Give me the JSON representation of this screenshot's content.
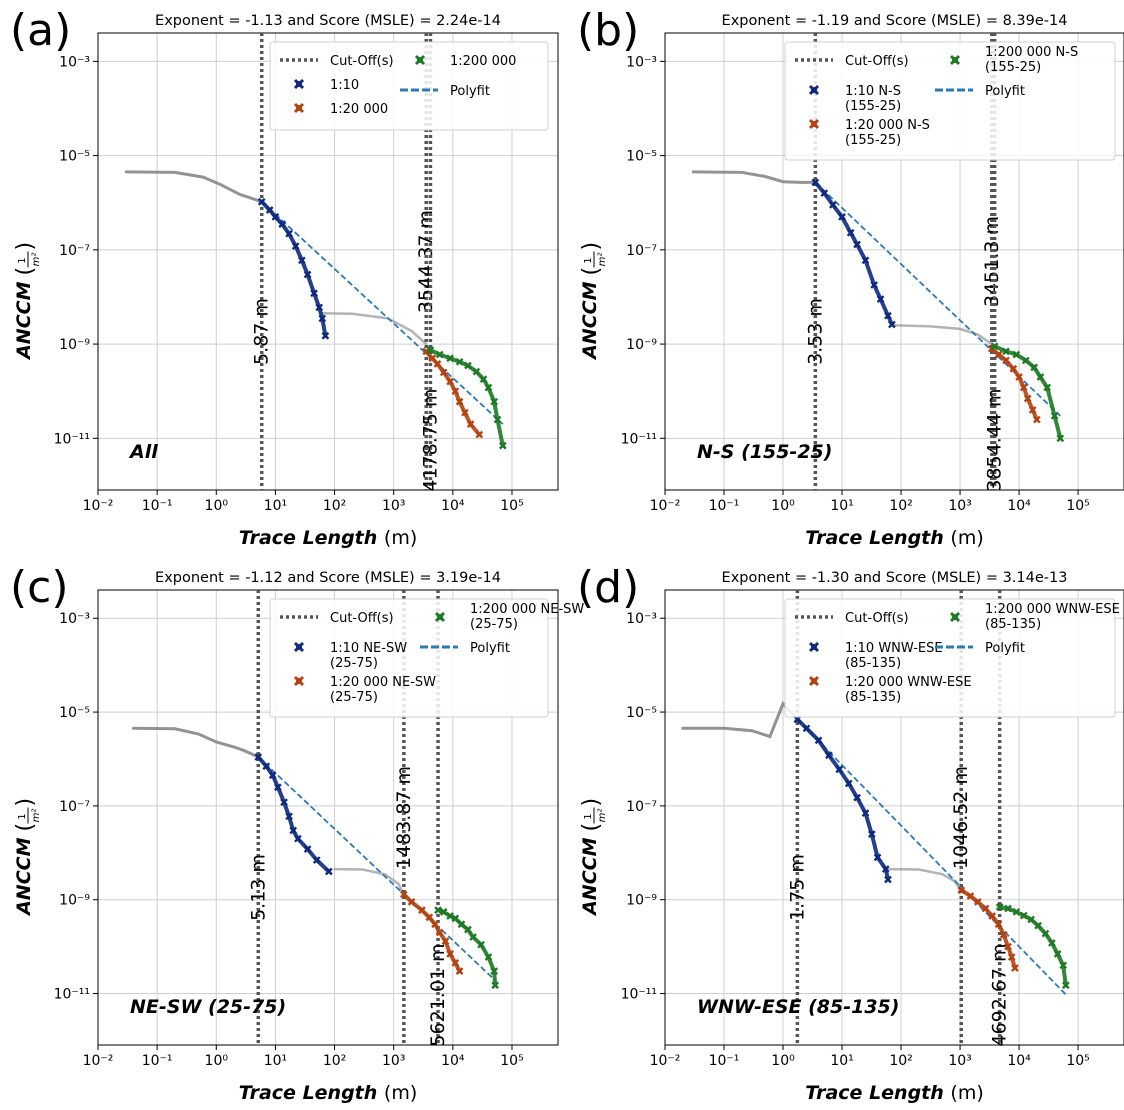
{
  "figure": {
    "shared": {
      "xlabel": "Trace Length",
      "xlabel_unit": "(m)",
      "ylabel": "ANCCM",
      "ylabel_unit_num": "1",
      "ylabel_unit_den": "m²",
      "xscale": "log",
      "yscale": "log",
      "grid": true,
      "xticks": [
        "10⁻²",
        "10⁻¹",
        "10⁰",
        "10¹",
        "10²",
        "10³",
        "10⁴",
        "10⁵"
      ],
      "yticks": [
        "10⁻¹¹",
        "10⁻⁹",
        "10⁻⁷",
        "10⁻⁵",
        "10⁻³"
      ]
    },
    "colors": {
      "blue": "#0d2a80",
      "orange": "#b5420f",
      "green": "#1d7a23",
      "polyfit": "#2a7ab8",
      "cutoff": "#555555",
      "grey": "#808080"
    }
  },
  "chart_data": [
    {
      "type": "scatter",
      "panel": "(a)",
      "title": "Exponent = -1.13 and Score (MSLE) = 2.24e-14",
      "set_label": "All",
      "xlim": [
        0.01,
        600000
      ],
      "ylim": [
        8e-13,
        0.004
      ],
      "legend": [
        "Cut-Off(s)",
        "1:10",
        "1:20 000",
        "1:200 000",
        "Polyfit"
      ],
      "cutoffs": [
        {
          "x": 5.87,
          "label": "5.87 m"
        },
        {
          "x": 3544.37,
          "label": "3544.37 m"
        },
        {
          "x": 4178.75,
          "label": "4178.75 m"
        }
      ],
      "grey_curve": [
        [
          0.03,
          4.5e-06
        ],
        [
          0.2,
          4.4e-06
        ],
        [
          0.6,
          3.5e-06
        ],
        [
          1.2,
          2.4e-06
        ],
        [
          2.5,
          1.5e-06
        ],
        [
          5.87,
          1.05e-06
        ]
      ],
      "grey_mid_curve": [
        [
          60,
          4.5e-09
        ],
        [
          200,
          4.4e-09
        ],
        [
          800,
          3.5e-09
        ],
        [
          2000,
          1.9e-09
        ],
        [
          3544,
          1e-09
        ]
      ],
      "series": [
        {
          "name": "1:10",
          "color": "blue",
          "marker": "x",
          "points": [
            [
              5.87,
              1.05e-06
            ],
            [
              8,
              7e-07
            ],
            [
              10,
              5e-07
            ],
            [
              13,
              3.5e-07
            ],
            [
              17,
              2.2e-07
            ],
            [
              22,
              1.2e-07
            ],
            [
              28,
              6e-08
            ],
            [
              35,
              3e-08
            ],
            [
              45,
              1.2e-08
            ],
            [
              55,
              6e-09
            ],
            [
              62,
              3.5e-09
            ],
            [
              70,
              1.5e-09
            ]
          ]
        },
        {
          "name": "1:20 000",
          "color": "orange",
          "marker": "x",
          "points": [
            [
              3544,
              7e-10
            ],
            [
              4500,
              5e-10
            ],
            [
              5500,
              3.8e-10
            ],
            [
              7000,
              2.5e-10
            ],
            [
              9000,
              1.6e-10
            ],
            [
              11000,
              1e-10
            ],
            [
              13000,
              6e-11
            ],
            [
              16000,
              3.5e-11
            ],
            [
              20000,
              2e-11
            ],
            [
              28000,
              1.2e-11
            ]
          ]
        },
        {
          "name": "1:200 000",
          "color": "green",
          "marker": "x",
          "points": [
            [
              4178,
              7.5e-10
            ],
            [
              6000,
              6e-10
            ],
            [
              9000,
              5e-10
            ],
            [
              13000,
              4.2e-10
            ],
            [
              18000,
              3.5e-10
            ],
            [
              25000,
              2.6e-10
            ],
            [
              33000,
              1.8e-10
            ],
            [
              40000,
              1.2e-10
            ],
            [
              50000,
              6e-11
            ],
            [
              57000,
              2.5e-11
            ],
            [
              70000,
              7e-12
            ]
          ]
        }
      ],
      "polyfit": [
        [
          5.87,
          1.05e-06
        ],
        [
          70000,
          2e-11
        ]
      ]
    },
    {
      "type": "scatter",
      "panel": "(b)",
      "title": "Exponent = -1.19 and Score (MSLE) = 8.39e-14",
      "set_label": "N-S (155-25)",
      "xlim": [
        0.01,
        600000
      ],
      "ylim": [
        8e-13,
        0.004
      ],
      "legend": [
        "Cut-Off(s)",
        "1:10 N-S (155-25)",
        "1:20 000 N-S (155-25)",
        "1:200 000 N-S (155-25)",
        "Polyfit"
      ],
      "cutoffs": [
        {
          "x": 3.53,
          "label": "3.53 m"
        },
        {
          "x": 3451.3,
          "label": "3451.3 m"
        },
        {
          "x": 3854.44,
          "label": "3854.44 m"
        }
      ],
      "grey_curve": [
        [
          0.03,
          4.5e-06
        ],
        [
          0.2,
          4.4e-06
        ],
        [
          0.5,
          3.6e-06
        ],
        [
          1.0,
          2.8e-06
        ],
        [
          2.0,
          2.7e-06
        ],
        [
          3.53,
          2.7e-06
        ]
      ],
      "grey_mid_curve": [
        [
          70,
          2.5e-09
        ],
        [
          300,
          2.4e-09
        ],
        [
          1000,
          2.1e-09
        ],
        [
          2000,
          1.6e-09
        ],
        [
          3451,
          1e-09
        ]
      ],
      "series": [
        {
          "name": "1:10 N-S (155-25)",
          "color": "blue",
          "marker": "x",
          "points": [
            [
              3.53,
              2.7e-06
            ],
            [
              5,
              1.6e-06
            ],
            [
              7,
              9e-07
            ],
            [
              10,
              5e-07
            ],
            [
              14,
              2.3e-07
            ],
            [
              18,
              1.3e-07
            ],
            [
              25,
              6e-08
            ],
            [
              35,
              1.8e-08
            ],
            [
              45,
              9e-09
            ],
            [
              60,
              4e-09
            ],
            [
              70,
              2.6e-09
            ]
          ]
        },
        {
          "name": "1:20 000 N-S (155-25)",
          "color": "orange",
          "marker": "x",
          "points": [
            [
              3451,
              8e-10
            ],
            [
              4500,
              6e-10
            ],
            [
              6000,
              4.5e-10
            ],
            [
              8000,
              3e-10
            ],
            [
              10000,
              2e-10
            ],
            [
              12000,
              1.2e-10
            ],
            [
              14000,
              7e-11
            ],
            [
              17000,
              4e-11
            ],
            [
              20000,
              2.5e-11
            ]
          ]
        },
        {
          "name": "1:200 000 N-S (155-25)",
          "color": "green",
          "marker": "x",
          "points": [
            [
              3854,
              9e-10
            ],
            [
              6000,
              7e-10
            ],
            [
              9000,
              6e-10
            ],
            [
              13000,
              4.5e-10
            ],
            [
              18000,
              3.2e-10
            ],
            [
              23000,
              2e-10
            ],
            [
              30000,
              1.2e-10
            ],
            [
              40000,
              3e-11
            ],
            [
              50000,
              1e-11
            ]
          ]
        }
      ],
      "polyfit": [
        [
          3.53,
          2.7e-06
        ],
        [
          50000,
          3e-11
        ]
      ]
    },
    {
      "type": "scatter",
      "panel": "(c)",
      "title": "Exponent = -1.12 and Score (MSLE) = 3.19e-14",
      "set_label": "NE-SW (25-75)",
      "xlim": [
        0.01,
        600000
      ],
      "ylim": [
        8e-13,
        0.004
      ],
      "legend": [
        "Cut-Off(s)",
        "1:10 NE-SW (25-75)",
        "1:20 000 NE-SW (25-75)",
        "1:200 000 NE-SW (25-75)",
        "Polyfit"
      ],
      "cutoffs": [
        {
          "x": 5.13,
          "label": "5.13 m"
        },
        {
          "x": 1483.87,
          "label": "1483.87 m"
        },
        {
          "x": 5621.01,
          "label": "5621.01 m"
        }
      ],
      "grey_curve": [
        [
          0.04,
          4.5e-06
        ],
        [
          0.2,
          4.4e-06
        ],
        [
          0.5,
          3.4e-06
        ],
        [
          1.0,
          2.3e-06
        ],
        [
          2.0,
          1.8e-06
        ],
        [
          3.0,
          1.5e-06
        ],
        [
          5.13,
          1.1e-06
        ]
      ],
      "grey_mid_curve": [
        [
          100,
          4.5e-09
        ],
        [
          300,
          4.4e-09
        ],
        [
          700,
          3.5e-09
        ],
        [
          1200,
          2.2e-09
        ],
        [
          1483,
          1.3e-09
        ]
      ],
      "series": [
        {
          "name": "1:10 NE-SW (25-75)",
          "color": "blue",
          "marker": "x",
          "points": [
            [
              5.13,
              1.1e-06
            ],
            [
              7,
              7e-07
            ],
            [
              9,
              4.5e-07
            ],
            [
              11,
              2.5e-07
            ],
            [
              14,
              1.2e-07
            ],
            [
              17,
              6e-08
            ],
            [
              20,
              3e-08
            ],
            [
              24,
              2e-08
            ],
            [
              35,
              1.2e-08
            ],
            [
              50,
              7e-09
            ],
            [
              80,
              4e-09
            ]
          ]
        },
        {
          "name": "1:20 000 NE-SW (25-75)",
          "color": "orange",
          "marker": "x",
          "points": [
            [
              1483,
              1.3e-09
            ],
            [
              2000,
              9e-10
            ],
            [
              3000,
              6e-10
            ],
            [
              4000,
              4.2e-10
            ],
            [
              5000,
              3e-10
            ],
            [
              6000,
              2e-10
            ],
            [
              7500,
              1.3e-10
            ],
            [
              9000,
              7e-11
            ],
            [
              11000,
              4.5e-11
            ],
            [
              13000,
              3e-11
            ]
          ]
        },
        {
          "name": "1:200 000 NE-SW (25-75)",
          "color": "green",
          "marker": "x",
          "points": [
            [
              5621,
              6e-10
            ],
            [
              7000,
              5.5e-10
            ],
            [
              9000,
              4.5e-10
            ],
            [
              11000,
              4e-10
            ],
            [
              14000,
              3e-10
            ],
            [
              18000,
              2.3e-10
            ],
            [
              22000,
              1.6e-10
            ],
            [
              30000,
              1.1e-10
            ],
            [
              40000,
              6e-11
            ],
            [
              50000,
              3e-11
            ],
            [
              52000,
              1.5e-11
            ]
          ]
        }
      ],
      "polyfit": [
        [
          5.13,
          1.1e-06
        ],
        [
          50000,
          2e-11
        ]
      ]
    },
    {
      "type": "scatter",
      "panel": "(d)",
      "title": "Exponent = -1.30 and Score (MSLE) = 3.14e-13",
      "set_label": "WNW-ESE (85-135)",
      "xlim": [
        0.01,
        600000
      ],
      "ylim": [
        8e-13,
        0.004
      ],
      "legend": [
        "Cut-Off(s)",
        "1:10 WNW-ESE (85-135)",
        "1:20 000 WNW-ESE (85-135)",
        "1:200 000 WNW-ESE (85-135)",
        "Polyfit"
      ],
      "cutoffs": [
        {
          "x": 1.75,
          "label": "1.75 m"
        },
        {
          "x": 1046.52,
          "label": "1046.52 m"
        },
        {
          "x": 4692.67,
          "label": "4692.67 m"
        }
      ],
      "grey_curve": [
        [
          0.02,
          4.5e-06
        ],
        [
          0.1,
          4.5e-06
        ],
        [
          0.3,
          4e-06
        ],
        [
          0.6,
          3e-06
        ],
        [
          1.0,
          1.5e-05
        ],
        [
          1.75,
          7e-06
        ]
      ],
      "grey_mid_curve": [
        [
          60,
          4.5e-09
        ],
        [
          200,
          4.4e-09
        ],
        [
          500,
          3.5e-09
        ],
        [
          800,
          2.5e-09
        ],
        [
          1046,
          1.6e-09
        ]
      ],
      "series": [
        {
          "name": "1:10 WNW-ESE (85-135)",
          "color": "blue",
          "marker": "x",
          "points": [
            [
              1.75,
              7e-06
            ],
            [
              2.5,
              4.5e-06
            ],
            [
              4,
              2.5e-06
            ],
            [
              6,
              1.2e-06
            ],
            [
              9,
              6e-07
            ],
            [
              13,
              3e-07
            ],
            [
              18,
              1.5e-07
            ],
            [
              25,
              7e-08
            ],
            [
              32,
              2.5e-08
            ],
            [
              40,
              8e-09
            ],
            [
              55,
              4.5e-09
            ],
            [
              60,
              2.7e-09
            ]
          ]
        },
        {
          "name": "1:20 000 WNW-ESE (85-135)",
          "color": "orange",
          "marker": "x",
          "points": [
            [
              1046,
              1.6e-09
            ],
            [
              1500,
              1.2e-09
            ],
            [
              2000,
              9e-10
            ],
            [
              2700,
              6.5e-10
            ],
            [
              3500,
              4.5e-10
            ],
            [
              4500,
              3e-10
            ],
            [
              5500,
              1.8e-10
            ],
            [
              6500,
              1e-10
            ],
            [
              7500,
              6e-11
            ],
            [
              8500,
              3.5e-11
            ]
          ]
        },
        {
          "name": "1:200 000 WNW-ESE (85-135)",
          "color": "green",
          "marker": "x",
          "points": [
            [
              4692,
              7e-10
            ],
            [
              6500,
              6.5e-10
            ],
            [
              9000,
              5.5e-10
            ],
            [
              12000,
              4.6e-10
            ],
            [
              16000,
              3.8e-10
            ],
            [
              21000,
              2.8e-10
            ],
            [
              28000,
              1.9e-10
            ],
            [
              36000,
              1.2e-10
            ],
            [
              45000,
              7e-11
            ],
            [
              56000,
              4e-11
            ],
            [
              62000,
              1.5e-11
            ]
          ]
        }
      ],
      "polyfit": [
        [
          1.75,
          7e-06
        ],
        [
          65000,
          9e-12
        ]
      ]
    }
  ]
}
